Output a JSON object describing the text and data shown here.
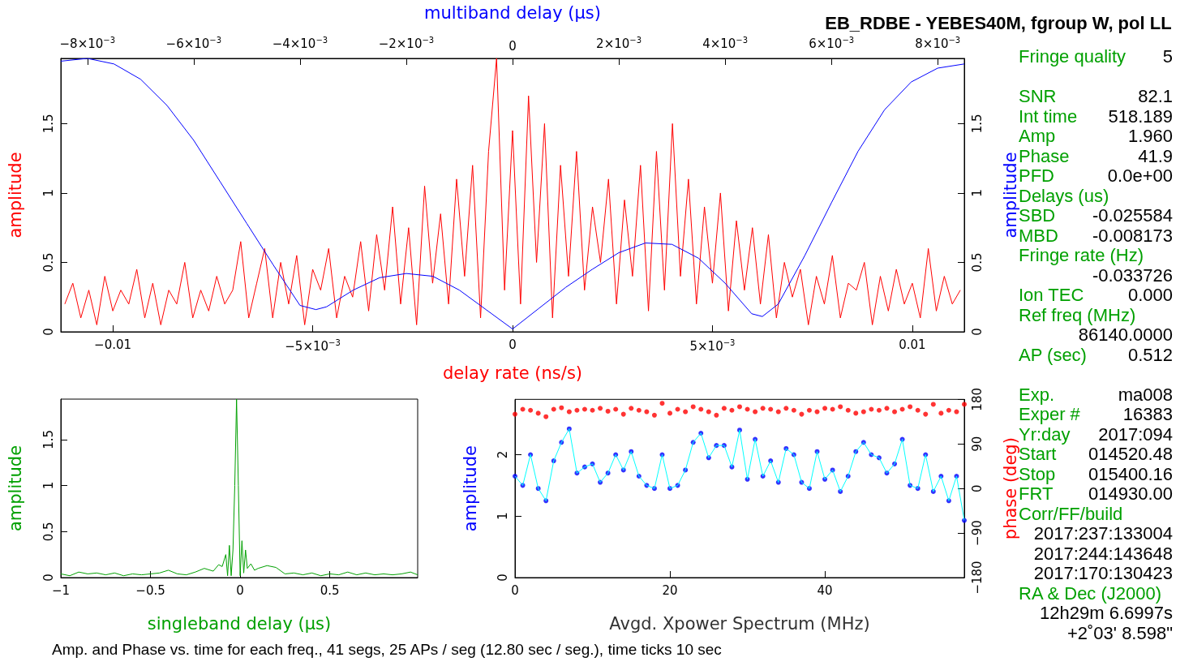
{
  "chart_data": [
    {
      "type": "line",
      "subtitle": "EB_RDBE - YEBES40M, fgroup W, pol LL",
      "xlabel": "delay rate (ns/s)",
      "x2label": "multiband delay (μs)",
      "ylabel": "amplitude",
      "y2label": "amplitude",
      "marker": "none",
      "xlim": [
        -0.0113,
        0.0113
      ],
      "xticks": [
        {
          "value": -0.01,
          "label": "−0.01"
        },
        {
          "value": -0.005,
          "label": "−5×10$^{−3}$"
        },
        0,
        {
          "value": 0.005,
          "label": "5×10$^{−3}$"
        },
        0.01
      ],
      "x2lim": [
        -0.0085,
        0.0085
      ],
      "x2ticks": [
        {
          "value": -0.008,
          "label": "−8×10$^{−3}$"
        },
        {
          "value": -0.006,
          "label": "−6×10$^{−3}$"
        },
        {
          "value": -0.004,
          "label": "−4×10$^{−3}$"
        },
        {
          "value": -0.002,
          "label": "−2×10$^{−3}$"
        },
        0,
        {
          "value": 0.002,
          "label": "2×10$^{−3}$"
        },
        {
          "value": 0.004,
          "label": "4×10$^{−3}$"
        },
        {
          "value": 0.006,
          "label": "6×10$^{−3}$"
        },
        {
          "value": 0.008,
          "label": "8×10$^{−3}$"
        }
      ],
      "ylim": [
        0,
        1.97
      ],
      "yticks": [
        0,
        0.5,
        1,
        1.5
      ],
      "y2lim": [
        0,
        1.97
      ],
      "y2ticks": [
        0,
        0.5,
        1,
        1.5
      ],
      "series": [
        {
          "color": "#ff0000",
          "x": [
            -0.0112,
            -0.011,
            -0.0108,
            -0.0106,
            -0.0104,
            -0.0102,
            -0.01,
            -0.0098,
            -0.0096,
            -0.0094,
            -0.0092,
            -0.009,
            -0.0088,
            -0.0086,
            -0.0084,
            -0.0082,
            -0.008,
            -0.0078,
            -0.0076,
            -0.0074,
            -0.0072,
            -0.007,
            -0.0068,
            -0.0066,
            -0.0064,
            -0.0062,
            -0.006,
            -0.0058,
            -0.0056,
            -0.0054,
            -0.0052,
            -0.005,
            -0.0048,
            -0.0046,
            -0.0044,
            -0.0042,
            -0.004,
            -0.0038,
            -0.0036,
            -0.0034,
            -0.0032,
            -0.003,
            -0.0028,
            -0.0026,
            -0.0024,
            -0.0022,
            -0.002,
            -0.0018,
            -0.0016,
            -0.0014,
            -0.0012,
            -0.001,
            -0.0008,
            -0.0006,
            -0.0004,
            -0.0002,
            0,
            0.0002,
            0.0004,
            0.0006,
            0.0008,
            0.001,
            0.0012,
            0.0014,
            0.0016,
            0.0018,
            0.002,
            0.0022,
            0.0024,
            0.0026,
            0.0028,
            0.003,
            0.0032,
            0.0034,
            0.0036,
            0.0038,
            0.004,
            0.0042,
            0.0044,
            0.0046,
            0.0048,
            0.005,
            0.0052,
            0.0054,
            0.0056,
            0.0058,
            0.006,
            0.0062,
            0.0064,
            0.0066,
            0.0068,
            0.007,
            0.0072,
            0.0074,
            0.0076,
            0.0078,
            0.008,
            0.0082,
            0.0084,
            0.0086,
            0.0088,
            0.009,
            0.0092,
            0.0094,
            0.0096,
            0.0098,
            0.01,
            0.0102,
            0.0104,
            0.0106,
            0.0108,
            0.011,
            0.0112
          ],
          "values": [
            0.2,
            0.35,
            0.1,
            0.3,
            0.05,
            0.4,
            0.15,
            0.3,
            0.2,
            0.45,
            0.1,
            0.35,
            0.05,
            0.3,
            0.2,
            0.5,
            0.1,
            0.3,
            0.15,
            0.4,
            0.2,
            0.3,
            0.65,
            0.1,
            0.35,
            0.6,
            0.1,
            0.5,
            0.2,
            0.55,
            0.05,
            0.45,
            0.3,
            0.6,
            0.1,
            0.4,
            0.25,
            0.65,
            0.15,
            0.7,
            0.3,
            0.9,
            0.2,
            0.75,
            0.05,
            1.05,
            0.35,
            0.85,
            0.2,
            1.1,
            0.4,
            1.2,
            0.1,
            1.3,
            1.97,
            0.3,
            1.45,
            0.2,
            1.7,
            0.5,
            1.5,
            0.1,
            1.2,
            0.4,
            1.3,
            0.3,
            0.9,
            0.5,
            1.1,
            0.2,
            0.95,
            0.4,
            1.2,
            0.15,
            1.3,
            0.3,
            1.5,
            0.4,
            1.1,
            0.2,
            0.9,
            0.35,
            1.0,
            0.15,
            0.8,
            0.3,
            0.75,
            0.2,
            0.7,
            0.1,
            0.5,
            0.25,
            0.45,
            0.05,
            0.4,
            0.2,
            0.55,
            0.1,
            0.35,
            0.3,
            0.5,
            0.05,
            0.4,
            0.15,
            0.45,
            0.2,
            0.35,
            0.1,
            0.6,
            0.15,
            0.4,
            0.2,
            0.3
          ]
        },
        {
          "color": "#0000ff",
          "axis": "x2",
          "x": [
            -0.0085,
            -0.008,
            -0.0075,
            -0.007,
            -0.0065,
            -0.006,
            -0.0055,
            -0.005,
            -0.0045,
            -0.004,
            -0.0037,
            -0.0035,
            -0.003,
            -0.0025,
            -0.002,
            -0.0015,
            -0.001,
            -0.0005,
            0,
            0.0005,
            0.001,
            0.0015,
            0.002,
            0.0025,
            0.003,
            0.0035,
            0.004,
            0.0045,
            0.0047,
            0.005,
            0.0055,
            0.006,
            0.0065,
            0.007,
            0.0075,
            0.008,
            0.0085
          ],
          "values": [
            1.95,
            1.97,
            1.93,
            1.82,
            1.63,
            1.38,
            1.08,
            0.78,
            0.48,
            0.19,
            0.16,
            0.18,
            0.3,
            0.39,
            0.42,
            0.4,
            0.3,
            0.16,
            0.02,
            0.17,
            0.32,
            0.45,
            0.57,
            0.64,
            0.63,
            0.53,
            0.35,
            0.13,
            0.11,
            0.2,
            0.55,
            0.93,
            1.3,
            1.6,
            1.8,
            1.9,
            1.93
          ]
        }
      ]
    },
    {
      "type": "line",
      "xlabel": "singleband delay (μs)",
      "ylabel": "amplitude",
      "marker": "none",
      "xlim": [
        -1,
        0.99
      ],
      "xticks": [
        {
          "value": -1,
          "label": "−1"
        },
        {
          "value": -0.5,
          "label": "−0.5"
        },
        0,
        0.5
      ],
      "ylim": [
        0,
        1.94
      ],
      "yticks": [
        0,
        0.5,
        1,
        1.5
      ],
      "series": [
        {
          "color": "#00a000",
          "x": [
            -1,
            -0.95,
            -0.9,
            -0.85,
            -0.8,
            -0.75,
            -0.7,
            -0.65,
            -0.6,
            -0.55,
            -0.5,
            -0.45,
            -0.4,
            -0.35,
            -0.3,
            -0.25,
            -0.2,
            -0.15,
            -0.12,
            -0.1,
            -0.08,
            -0.07,
            -0.06,
            -0.05,
            -0.04,
            -0.03,
            -0.02,
            -0.01,
            0,
            0.01,
            0.02,
            0.03,
            0.04,
            0.06,
            0.08,
            0.1,
            0.15,
            0.2,
            0.25,
            0.3,
            0.35,
            0.4,
            0.45,
            0.5,
            0.55,
            0.6,
            0.65,
            0.7,
            0.75,
            0.8,
            0.85,
            0.9,
            0.95,
            0.99
          ],
          "values": [
            0.04,
            0.02,
            0.06,
            0.04,
            0.05,
            0.03,
            0.05,
            0.02,
            0.04,
            0.03,
            0.04,
            0.05,
            0.08,
            0.04,
            0.03,
            0.06,
            0.1,
            0.07,
            0.14,
            0.12,
            0.25,
            0.02,
            0.35,
            0.02,
            0.3,
            1.0,
            1.94,
            1.0,
            0.02,
            0.4,
            0.05,
            0.3,
            0.1,
            0.15,
            0.08,
            0.1,
            0.13,
            0.11,
            0.04,
            0.05,
            0.03,
            0.05,
            0.02,
            0.04,
            0.03,
            0.06,
            0.03,
            0.05,
            0.03,
            0.04,
            0.03,
            0.04,
            0.06,
            0.03
          ]
        }
      ]
    },
    {
      "type": "scatter",
      "xlabel": "Avgd. Xpower Spectrum (MHz)",
      "ylabel": "amplitude",
      "y2label": "phase (deg)",
      "annotations": [
        "Amp. and Phase vs. time for each freq., 41 segs, 25 APs / seg (12.80 sec / seg.), time ticks 10 sec"
      ],
      "xlim": [
        0,
        58
      ],
      "xticks": [
        0,
        20,
        40
      ],
      "ylim": [
        0,
        2.9
      ],
      "yticks": [
        0,
        1,
        2
      ],
      "y2lim": [
        -180,
        180
      ],
      "y2ticks": [
        {
          "value": -180,
          "label": "−180"
        },
        {
          "value": -90,
          "label": "−90"
        },
        0,
        90,
        180
      ],
      "series": [
        {
          "type": "scatter",
          "axis": "y2",
          "marker": "circle",
          "color": "#ff0000",
          "x": [
            0,
            1,
            2,
            3,
            4,
            5,
            6,
            7,
            8,
            9,
            10,
            11,
            12,
            13,
            14,
            15,
            16,
            17,
            18,
            19,
            20,
            21,
            22,
            23,
            24,
            25,
            26,
            27,
            28,
            29,
            30,
            31,
            32,
            33,
            34,
            35,
            36,
            37,
            38,
            39,
            40,
            41,
            42,
            43,
            44,
            45,
            46,
            47,
            48,
            49,
            50,
            51,
            52,
            53,
            54,
            55,
            56,
            57,
            58
          ],
          "values": [
            150,
            160,
            158,
            152,
            145,
            160,
            163,
            155,
            158,
            160,
            158,
            162,
            156,
            160,
            150,
            162,
            158,
            155,
            148,
            172,
            152,
            160,
            155,
            165,
            160,
            155,
            148,
            162,
            158,
            165,
            160,
            155,
            162,
            160,
            155,
            162,
            158,
            150,
            158,
            155,
            162,
            160,
            165,
            158,
            152,
            155,
            160,
            158,
            162,
            155,
            160,
            165,
            158,
            150,
            170,
            152,
            158,
            155,
            170
          ]
        },
        {
          "type": "line",
          "marker": "none",
          "color": "#00ffff",
          "x": [
            0,
            1,
            2,
            3,
            4,
            5,
            6,
            7,
            8,
            9,
            10,
            11,
            12,
            13,
            14,
            15,
            16,
            17,
            18,
            19,
            20,
            21,
            22,
            23,
            24,
            25,
            26,
            27,
            28,
            29,
            30,
            31,
            32,
            33,
            34,
            35,
            36,
            37,
            38,
            39,
            40,
            41,
            42,
            43,
            44,
            45,
            46,
            47,
            48,
            49,
            50,
            51,
            52,
            53,
            54,
            55,
            56,
            57,
            58
          ],
          "values": [
            1.65,
            1.5,
            2.0,
            1.45,
            1.25,
            1.9,
            2.2,
            2.42,
            1.7,
            1.8,
            1.85,
            1.55,
            1.7,
            2.0,
            1.75,
            2.05,
            1.65,
            1.5,
            1.45,
            2.0,
            1.45,
            1.5,
            1.75,
            2.2,
            2.35,
            1.95,
            2.15,
            2.15,
            1.8,
            2.4,
            1.6,
            2.25,
            1.65,
            1.9,
            1.55,
            2.1,
            2.0,
            1.55,
            1.45,
            2.05,
            1.6,
            1.75,
            1.4,
            1.65,
            2.05,
            2.2,
            2.0,
            1.95,
            1.7,
            1.85,
            2.25,
            1.5,
            1.45,
            2.0,
            1.4,
            1.65,
            1.25,
            1.65,
            0.93
          ]
        },
        {
          "type": "scatter",
          "marker": "circle",
          "color": "#0000ff",
          "x": [
            0,
            1,
            2,
            3,
            4,
            5,
            6,
            7,
            8,
            9,
            10,
            11,
            12,
            13,
            14,
            15,
            16,
            17,
            18,
            19,
            20,
            21,
            22,
            23,
            24,
            25,
            26,
            27,
            28,
            29,
            30,
            31,
            32,
            33,
            34,
            35,
            36,
            37,
            38,
            39,
            40,
            41,
            42,
            43,
            44,
            45,
            46,
            47,
            48,
            49,
            50,
            51,
            52,
            53,
            54,
            55,
            56,
            57,
            58
          ],
          "values": [
            1.65,
            1.5,
            2.0,
            1.45,
            1.25,
            1.9,
            2.2,
            2.42,
            1.7,
            1.8,
            1.85,
            1.55,
            1.7,
            2.0,
            1.75,
            2.05,
            1.65,
            1.5,
            1.45,
            2.0,
            1.45,
            1.5,
            1.75,
            2.2,
            2.35,
            1.95,
            2.15,
            2.15,
            1.8,
            2.4,
            1.6,
            2.25,
            1.65,
            1.9,
            1.55,
            2.1,
            2.0,
            1.55,
            1.45,
            2.05,
            1.6,
            1.75,
            1.4,
            1.65,
            2.05,
            2.2,
            2.0,
            1.95,
            1.7,
            1.85,
            2.25,
            1.5,
            1.45,
            2.0,
            1.4,
            1.65,
            1.25,
            1.65,
            0.93
          ]
        }
      ]
    },
    {
      "type": "other",
      "color": "#00a000",
      "categories": [
        "Fringe quality",
        null,
        "SNR",
        "Int time",
        "Amp",
        "Phase",
        "PFD",
        "Delays (us)",
        "SBD",
        "MBD",
        "Fringe rate (Hz)",
        null,
        "Ion TEC",
        "Ref freq (MHz)",
        null,
        "AP (sec)",
        null,
        "Exp.",
        "Exper #",
        "Yr:day",
        "Start",
        "Stop",
        "FRT",
        "Corr/FF/build",
        null,
        null,
        null,
        "RA & Dec (J2000)",
        null,
        null
      ],
      "value_labels": [
        "5",
        null,
        "82.1",
        "518.189",
        "1.960",
        "41.9",
        "0.0e+00",
        null,
        "-0.025584",
        "-0.008173",
        null,
        "-0.033726",
        "0.000",
        null,
        "86140.0000",
        "0.512",
        null,
        "ma008",
        "16383",
        "2017:094",
        "014520.48",
        "015400.16",
        "014930.00",
        null,
        "2017:237:133004",
        "2017:244:143648",
        "2017:170:130423",
        null,
        "12h29m 6.6997s",
        "+2˚03' 8.598\""
      ]
    }
  ]
}
